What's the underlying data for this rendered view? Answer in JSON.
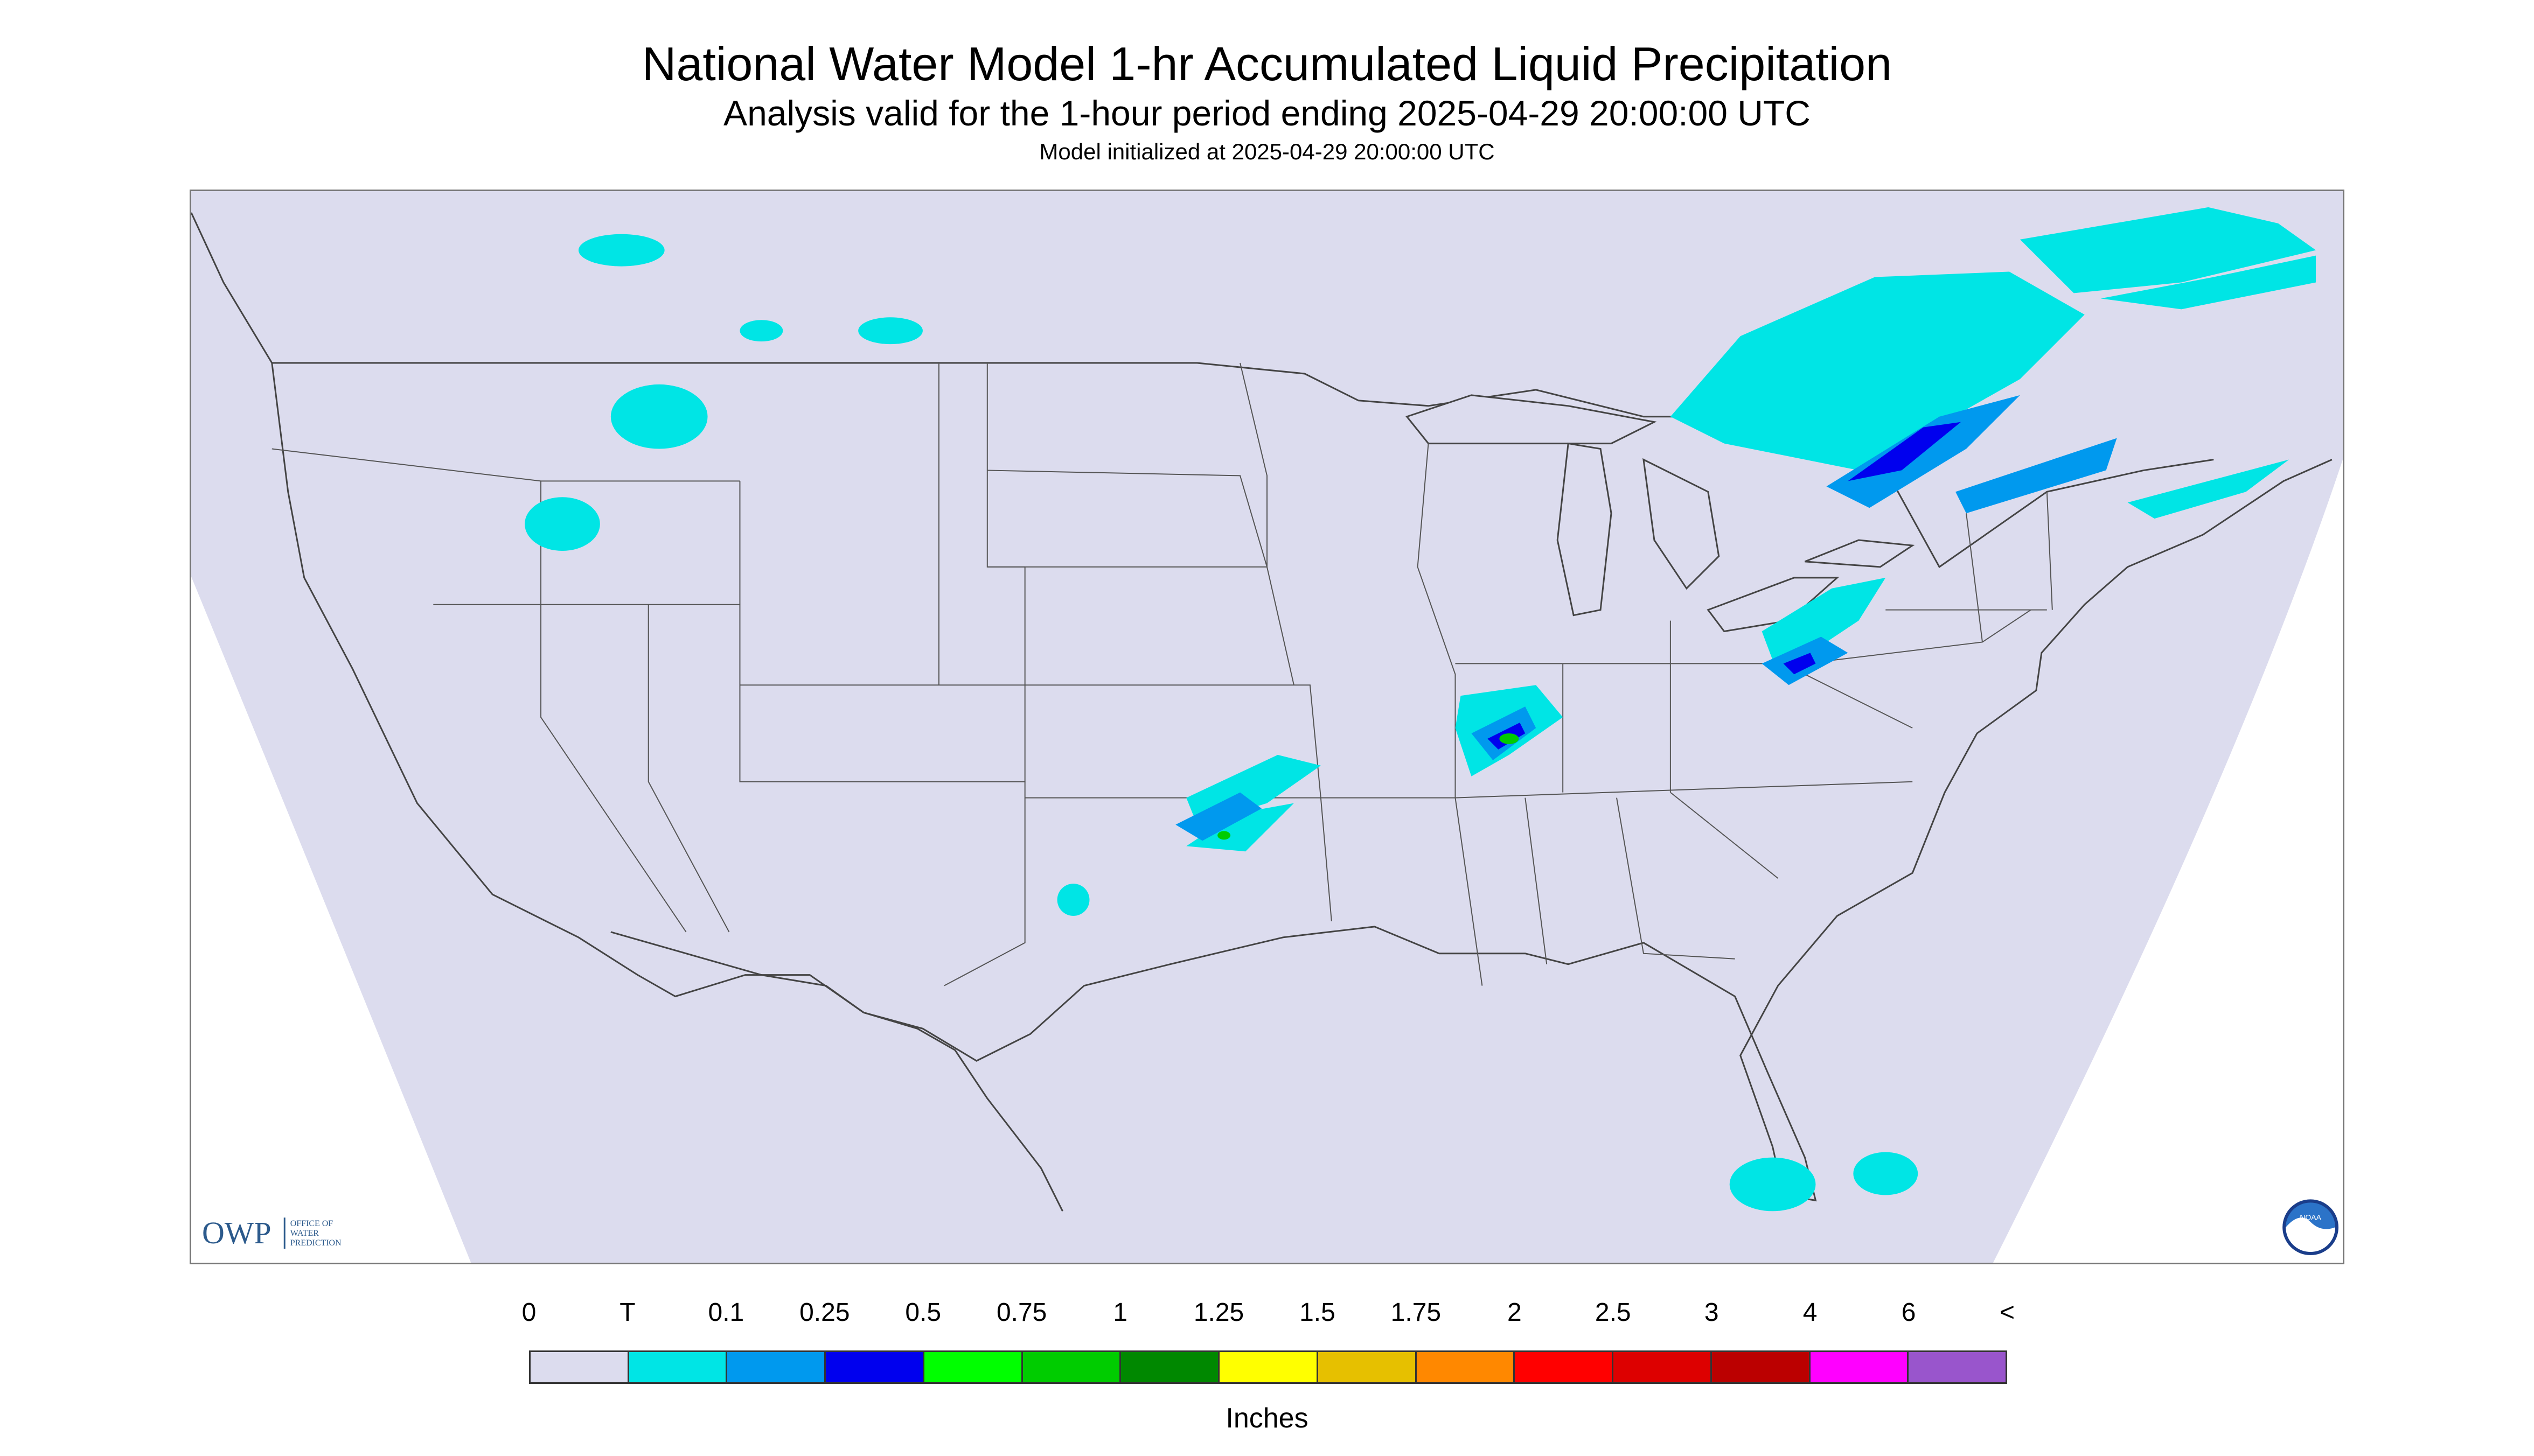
{
  "header": {
    "title": "National Water Model 1-hr Accumulated Liquid Precipitation",
    "subtitle": "Analysis valid for the 1-hour period ending 2025-04-29 20:00:00 UTC",
    "init_line": "Model initialized at 2025-04-29 20:00:00 UTC"
  },
  "map": {
    "region": "Contiguous United States",
    "outside_domain_color": "#ffffff",
    "domain_fill_color": "#dcdcee",
    "boundary_line_color": "#444444"
  },
  "logos": {
    "owp": {
      "letters": "OWP",
      "text_lines": [
        "OFFICE OF",
        "WATER",
        "PREDICTION"
      ]
    },
    "noaa": {
      "text": "NOAA"
    }
  },
  "legend": {
    "labels": [
      "0",
      "T",
      "0.1",
      "0.25",
      "0.5",
      "0.75",
      "1",
      "1.25",
      "1.5",
      "1.75",
      "2",
      "2.5",
      "3",
      "4",
      "6",
      "<"
    ],
    "colors": [
      "#dcdcee",
      "#00e5e5",
      "#0099ee",
      "#0000ee",
      "#00ff00",
      "#00cc00",
      "#008800",
      "#ffff00",
      "#e6c000",
      "#ff8800",
      "#ff0000",
      "#dd0000",
      "#bb0000",
      "#ff00ff",
      "#9955cc"
    ],
    "units": "Inches"
  }
}
